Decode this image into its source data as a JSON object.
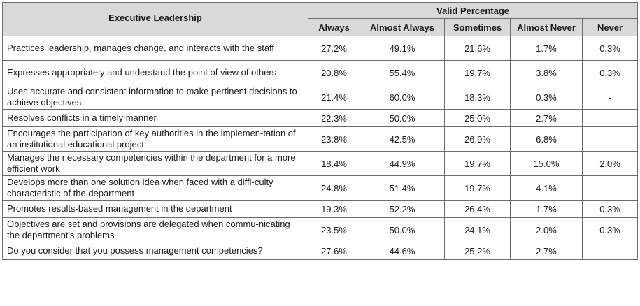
{
  "table": {
    "row_header": "Executive Leadership",
    "group_header": "Valid Percentage",
    "columns": [
      "Always",
      "Almost Always",
      "Sometimes",
      "Almost Never",
      "Never"
    ],
    "rows": [
      {
        "label": "Practices leadership, manages change, and interacts with the staff",
        "values": [
          "27.2%",
          "49.1%",
          "21.6%",
          "1.7%",
          "0.3%"
        ]
      },
      {
        "label": "Expresses appropriately and understand the point of view of others",
        "values": [
          "20.8%",
          "55.4%",
          "19.7%",
          "3.8%",
          "0.3%"
        ]
      },
      {
        "label": "Uses accurate and consistent information to make pertinent decisions to achieve objectives",
        "values": [
          "21.4%",
          "60.0%",
          "18.3%",
          "0.3%",
          "-"
        ]
      },
      {
        "label": "Resolves conflicts in a timely manner",
        "values": [
          "22.3%",
          "50.0%",
          "25.0%",
          "2.7%",
          "-"
        ]
      },
      {
        "label": "Encourages the participation of key authorities in the implemen-tation of an institutional educational project",
        "values": [
          "23.8%",
          "42.5%",
          "26.9%",
          "6.8%",
          "-"
        ]
      },
      {
        "label": "Manages the necessary competencies within the department for a more efficient work",
        "values": [
          "18.4%",
          "44.9%",
          "19.7%",
          "15.0%",
          "2.0%"
        ]
      },
      {
        "label": "Develops more than one solution idea when faced with a diffi-culty characteristic of the department",
        "values": [
          "24.8%",
          "51.4%",
          "19.7%",
          "4.1%",
          "-"
        ]
      },
      {
        "label": "Promotes results-based management in the department",
        "values": [
          "19.3%",
          "52.2%",
          "26.4%",
          "1.7%",
          "0.3%"
        ]
      },
      {
        "label": "Objectives are set and provisions are delegated when commu-nicating the department's problems",
        "values": [
          "23.5%",
          "50.0%",
          "24.1%",
          "2.0%",
          "0.3%"
        ]
      },
      {
        "label": "Do you consider that you possess management competencies?",
        "values": [
          "27.6%",
          "44.6%",
          "25.2%",
          "2.7%",
          "-"
        ]
      }
    ]
  }
}
